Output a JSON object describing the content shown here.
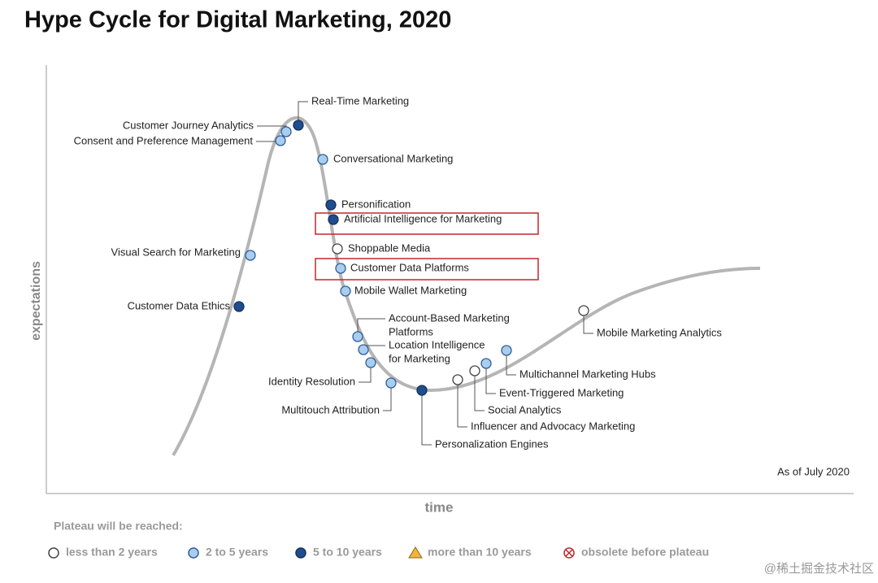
{
  "header": {
    "title": "Hype Cycle for Digital Marketing, 2020"
  },
  "axes": {
    "y_label": "expectations",
    "x_label": "time"
  },
  "note": "As of July 2020",
  "nodes": [
    {
      "label": [
        "Real-Time Marketing"
      ]
    },
    {
      "label": [
        "Customer Journey Analytics"
      ]
    },
    {
      "label": [
        "Consent and Preference Management"
      ]
    },
    {
      "label": [
        "Conversational Marketing"
      ]
    },
    {
      "label": [
        "Personification"
      ]
    },
    {
      "label": [
        "Artificial Intelligence for Marketing"
      ]
    },
    {
      "label": [
        "Shoppable Media"
      ]
    },
    {
      "label": [
        "Customer Data Platforms"
      ]
    },
    {
      "label": [
        "Mobile Wallet Marketing"
      ]
    },
    {
      "label": [
        "Visual Search for Marketing"
      ]
    },
    {
      "label": [
        "Customer Data Ethics"
      ]
    },
    {
      "label": [
        "Account-Based Marketing",
        "Platforms"
      ]
    },
    {
      "label": [
        "Location Intelligence",
        "for Marketing"
      ]
    },
    {
      "label": [
        "Identity Resolution"
      ]
    },
    {
      "label": [
        "Multitouch Attribution"
      ]
    },
    {
      "label": [
        "Personalization Engines"
      ]
    },
    {
      "label": [
        "Influencer and Advocacy Marketing"
      ]
    },
    {
      "label": [
        "Social Analytics"
      ]
    },
    {
      "label": [
        "Event-Triggered Marketing"
      ]
    },
    {
      "label": [
        "Multichannel Marketing Hubs"
      ]
    },
    {
      "label": [
        "Mobile Marketing Analytics"
      ]
    }
  ],
  "legend": {
    "title": "Plateau will be reached:",
    "items": [
      "less than 2 years",
      "2 to 5 years",
      "5 to 10 years",
      "more than 10 years",
      "obsolete before plateau"
    ]
  },
  "watermark": "@稀土掘金技术社区"
}
